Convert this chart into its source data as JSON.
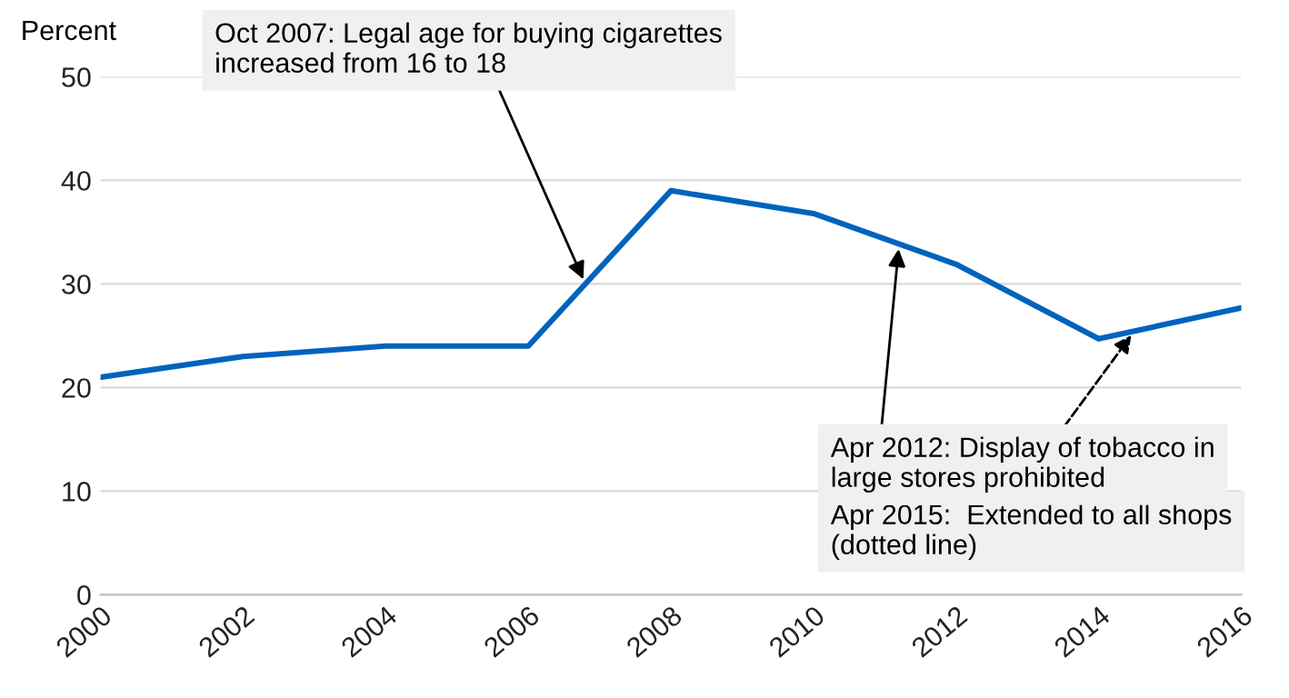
{
  "chart_data": {
    "type": "line",
    "ylabel": "Percent",
    "x": [
      2000,
      2002,
      2004,
      2006,
      2008,
      2010,
      2012,
      2014,
      2016
    ],
    "series": [
      {
        "color": "#0063be",
        "values": [
          21,
          23,
          24,
          24,
          39,
          36.8,
          31.9,
          24.7,
          27.7
        ]
      }
    ],
    "xlim": [
      2000,
      2016
    ],
    "xticks": [
      2000,
      2002,
      2004,
      2006,
      2008,
      2010,
      2012,
      2014,
      2016
    ],
    "ylim": [
      0,
      50
    ],
    "yticks": [
      0,
      10,
      20,
      30,
      40,
      50
    ],
    "grid": "y",
    "legend": false,
    "marker": "none",
    "line_style": "solid",
    "annotations": [
      {
        "text": "Oct 2007: Legal age for buying cigarettes\nincreased from 16 to 18",
        "x": 2006.8,
        "y": 30
      },
      {
        "text": "Apr 2012: Display of tobacco in\nlarge stores prohibited",
        "x": 2011.2,
        "y": 33.86
      },
      {
        "text": "Apr 2015:  Extended to all shops\n(dotted line)",
        "x": 2014.5,
        "y": 25.45
      }
    ]
  }
}
